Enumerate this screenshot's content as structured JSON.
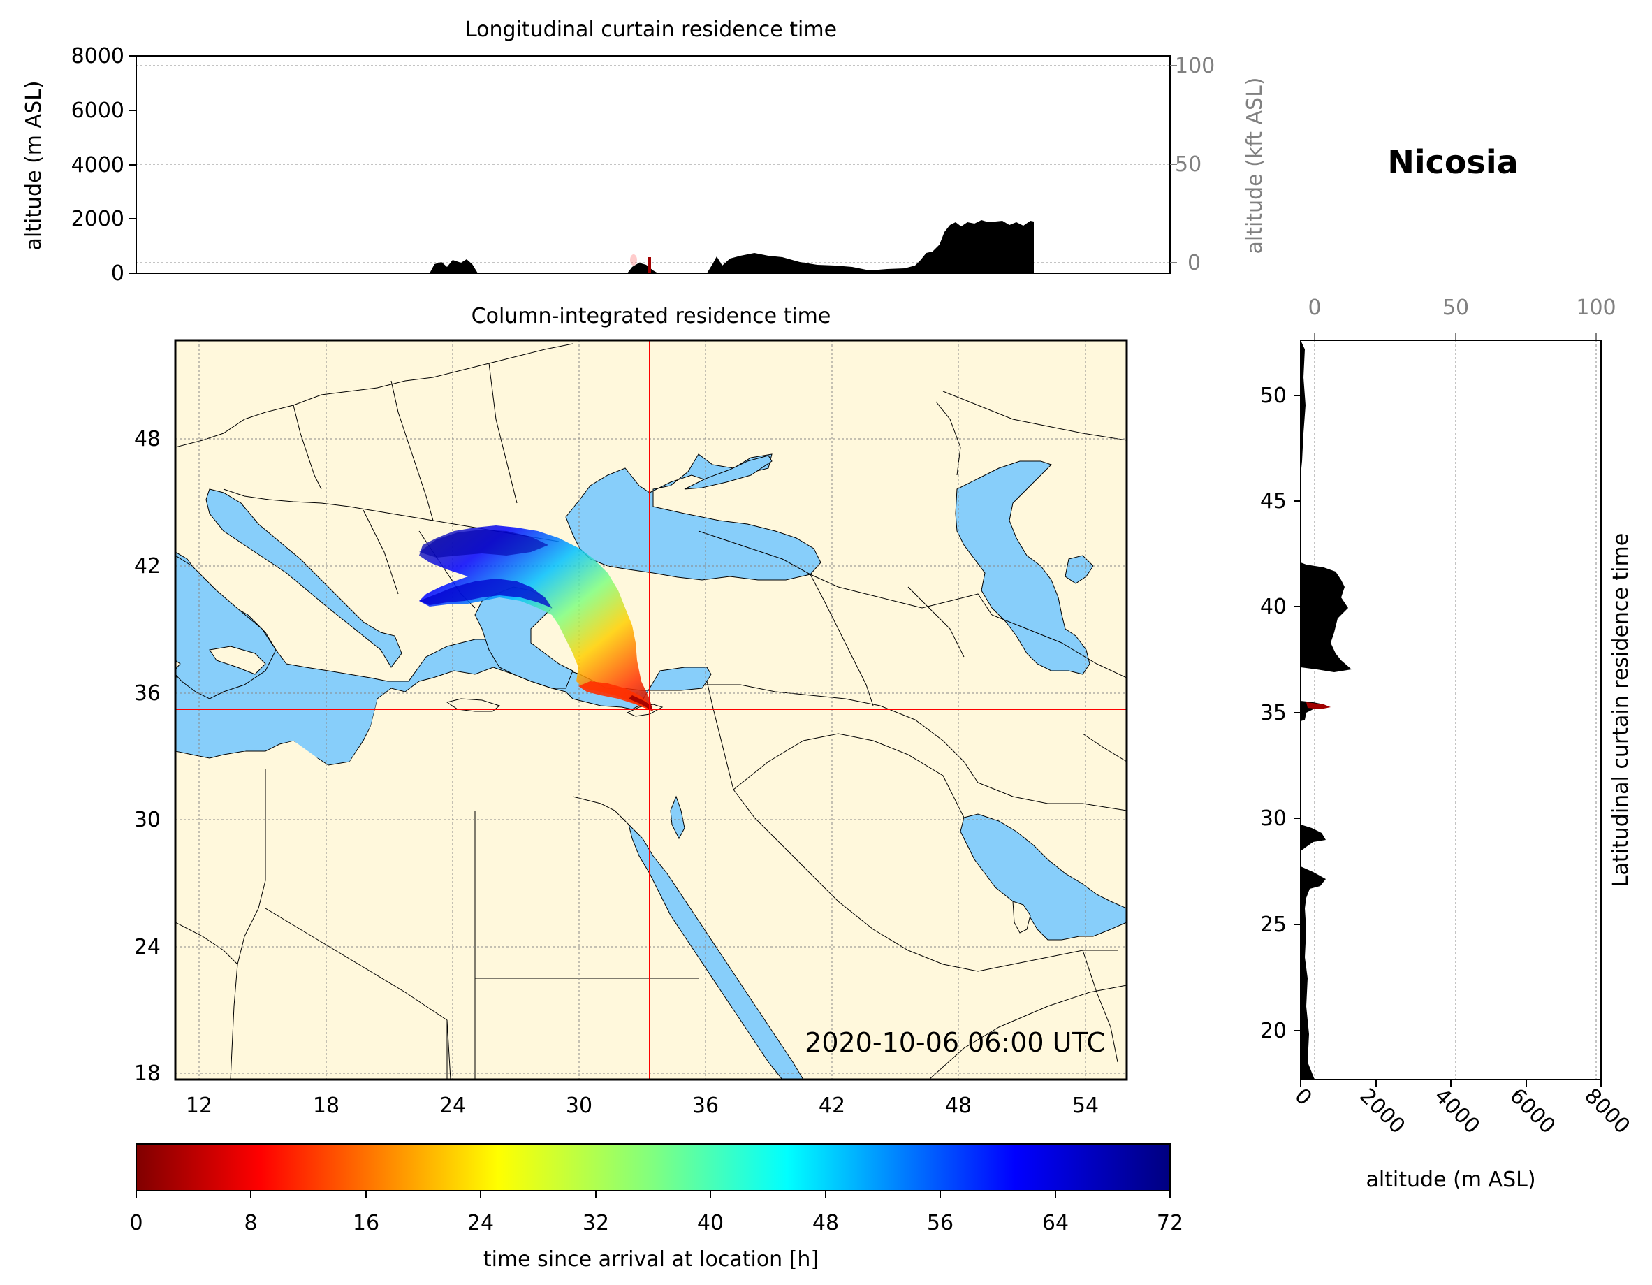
{
  "figure": {
    "location_title": "Nicosia",
    "timestamp": "2020-10-06 06:00 UTC"
  },
  "top_panel": {
    "title": "Longitudinal curtain residence time",
    "ylabel_left": "altitude (m ASL)",
    "ylabel_right": "altitude (kft ASL)",
    "left_ticks": [
      "0",
      "2000",
      "4000",
      "6000",
      "8000"
    ],
    "right_ticks": [
      "0",
      "50",
      "100"
    ]
  },
  "map_panel": {
    "title": "Column-integrated residence time",
    "lon_ticks": [
      "12",
      "18",
      "24",
      "30",
      "36",
      "42",
      "48",
      "54"
    ],
    "lat_ticks": [
      "18",
      "24",
      "30",
      "36",
      "42",
      "48"
    ],
    "colors": {
      "land": "#fff8dc",
      "sea": "#87cefa",
      "marker": "#ff0000"
    }
  },
  "side_panel": {
    "ylabel": "Latitudinal curtain residence time",
    "xlabel": "altitude (m ASL)",
    "lat_ticks": [
      "20",
      "25",
      "30",
      "35",
      "40",
      "45",
      "50"
    ],
    "bottom_ticks": [
      "0",
      "2000",
      "4000",
      "6000",
      "8000"
    ],
    "top_ticks": [
      "0",
      "50",
      "100"
    ]
  },
  "colorbar": {
    "label": "time since arrival at location [h]",
    "ticks": [
      "0",
      "8",
      "16",
      "24",
      "32",
      "40",
      "48",
      "56",
      "64",
      "72"
    ],
    "colormap": "jet_r"
  }
}
